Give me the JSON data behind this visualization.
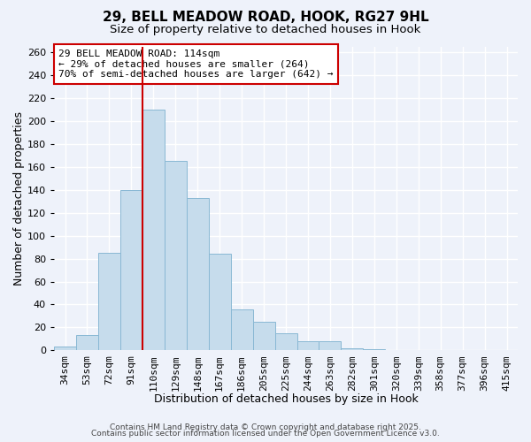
{
  "title": "29, BELL MEADOW ROAD, HOOK, RG27 9HL",
  "subtitle": "Size of property relative to detached houses in Hook",
  "xlabel": "Distribution of detached houses by size in Hook",
  "ylabel": "Number of detached properties",
  "bar_labels": [
    "34sqm",
    "53sqm",
    "72sqm",
    "91sqm",
    "110sqm",
    "129sqm",
    "148sqm",
    "167sqm",
    "186sqm",
    "205sqm",
    "225sqm",
    "244sqm",
    "263sqm",
    "282sqm",
    "301sqm",
    "320sqm",
    "339sqm",
    "358sqm",
    "377sqm",
    "396sqm",
    "415sqm"
  ],
  "bar_values": [
    3,
    13,
    85,
    140,
    210,
    165,
    133,
    84,
    36,
    25,
    15,
    8,
    8,
    2,
    1,
    0,
    0,
    0,
    0,
    0,
    0
  ],
  "bar_color": "#c6dcec",
  "bar_edgecolor": "#89b8d4",
  "highlight_line_color": "#cc0000",
  "highlight_bar_index": 4,
  "ylim": [
    0,
    265
  ],
  "yticks": [
    0,
    20,
    40,
    60,
    80,
    100,
    120,
    140,
    160,
    180,
    200,
    220,
    240,
    260
  ],
  "annotation_text": "29 BELL MEADOW ROAD: 114sqm\n← 29% of detached houses are smaller (264)\n70% of semi-detached houses are larger (642) →",
  "annotation_box_color": "#ffffff",
  "annotation_box_edgecolor": "#cc0000",
  "footer_line1": "Contains HM Land Registry data © Crown copyright and database right 2025.",
  "footer_line2": "Contains public sector information licensed under the Open Government Licence v3.0.",
  "background_color": "#eef2fa",
  "grid_color": "#ffffff",
  "title_fontsize": 11,
  "subtitle_fontsize": 9.5,
  "axis_label_fontsize": 9,
  "tick_fontsize": 8,
  "annotation_fontsize": 8,
  "footer_fontsize": 6.5
}
